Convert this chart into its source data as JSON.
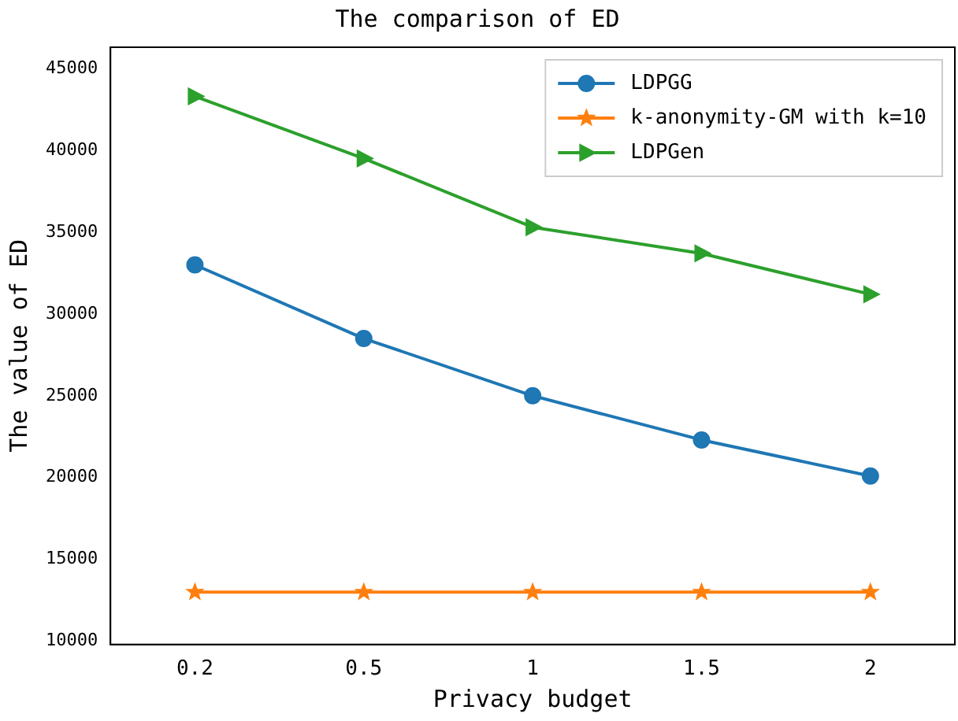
{
  "chart_data": {
    "type": "line",
    "title": "The comparison of ED",
    "xlabel": "Privacy budget",
    "ylabel": "The value of ED",
    "categories": [
      "0.2",
      "0.5",
      "1",
      "1.5",
      "2"
    ],
    "series": [
      {
        "name": "LDPGG",
        "color": "#1f77b4",
        "marker": "circle",
        "values": [
          33000,
          28500,
          25000,
          22300,
          20100
        ]
      },
      {
        "name": "k-anonymity-GM with k=10",
        "color": "#ff7f0e",
        "marker": "star",
        "values": [
          13000,
          13000,
          13000,
          13000,
          13000
        ]
      },
      {
        "name": "LDPGen",
        "color": "#2ca02c",
        "marker": "triangle",
        "values": [
          43300,
          39500,
          35300,
          33700,
          31200
        ]
      }
    ],
    "ylim": [
      9800,
      46300
    ],
    "yticks": [
      10000,
      15000,
      20000,
      25000,
      30000,
      35000,
      40000,
      45000
    ],
    "grid": false,
    "legend": "top right",
    "line_style": "solid"
  }
}
